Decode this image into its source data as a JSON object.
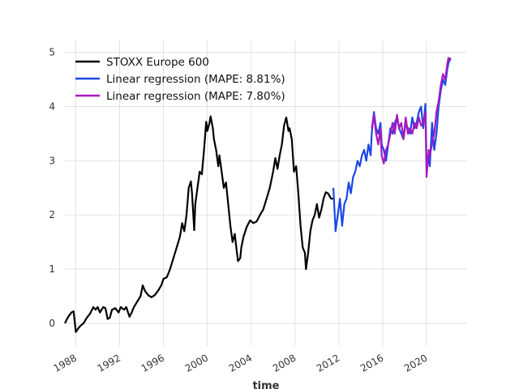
{
  "chart_data": {
    "type": "line",
    "title": "",
    "xlabel": "time",
    "ylabel": "",
    "xlim": [
      1987.0,
      2023.7
    ],
    "ylim": [
      -0.42,
      5.22
    ],
    "grid": true,
    "legend_position": "top-left",
    "x_ticks": [
      1988,
      1992,
      1996,
      2000,
      2004,
      2008,
      2012,
      2016,
      2020
    ],
    "y_ticks": [
      0,
      1,
      2,
      3,
      4,
      5
    ],
    "series": [
      {
        "name": "STOXX Europe 600",
        "color": "#000000",
        "x": [
          1987.0,
          1987.3,
          1987.6,
          1987.8,
          1988.0,
          1988.2,
          1988.4,
          1988.7,
          1989.0,
          1989.3,
          1989.6,
          1989.8,
          1990.0,
          1990.2,
          1990.5,
          1990.7,
          1990.9,
          1991.1,
          1991.3,
          1991.6,
          1991.9,
          1992.1,
          1992.4,
          1992.6,
          1992.9,
          1993.1,
          1993.3,
          1993.6,
          1993.9,
          1994.1,
          1994.3,
          1994.6,
          1994.9,
          1995.2,
          1995.5,
          1995.8,
          1996.0,
          1996.3,
          1996.6,
          1996.9,
          1997.2,
          1997.5,
          1997.7,
          1997.9,
          1998.1,
          1998.3,
          1998.5,
          1998.6,
          1998.8,
          1998.9,
          1999.1,
          1999.3,
          1999.5,
          1999.7,
          1999.9,
          2000.0,
          2000.2,
          2000.3,
          2000.5,
          2000.6,
          2000.8,
          2001.0,
          2001.1,
          2001.3,
          2001.5,
          2001.7,
          2001.9,
          2002.1,
          2002.3,
          2002.5,
          2002.7,
          2002.8,
          2003.0,
          2003.1,
          2003.3,
          2003.6,
          2003.9,
          2004.2,
          2004.5,
          2004.8,
          2005.1,
          2005.4,
          2005.7,
          2006.0,
          2006.2,
          2006.4,
          2006.6,
          2006.8,
          2007.0,
          2007.2,
          2007.4,
          2007.5,
          2007.7,
          2007.9,
          2008.1,
          2008.3,
          2008.5,
          2008.7,
          2008.9,
          2009.0,
          2009.2,
          2009.4,
          2009.6,
          2009.8,
          2010.0,
          2010.2,
          2010.4,
          2010.6,
          2010.8,
          2011.0,
          2011.3,
          2011.5
        ],
        "y": [
          0.0,
          0.12,
          0.2,
          0.22,
          -0.16,
          -0.1,
          -0.05,
          0.0,
          0.1,
          0.18,
          0.3,
          0.25,
          0.3,
          0.2,
          0.3,
          0.28,
          0.08,
          0.1,
          0.25,
          0.28,
          0.2,
          0.3,
          0.25,
          0.3,
          0.12,
          0.2,
          0.3,
          0.4,
          0.5,
          0.7,
          0.6,
          0.52,
          0.48,
          0.52,
          0.6,
          0.7,
          0.82,
          0.85,
          1.0,
          1.2,
          1.4,
          1.6,
          1.85,
          1.7,
          2.0,
          2.5,
          2.62,
          2.4,
          1.72,
          2.2,
          2.5,
          2.8,
          2.75,
          3.2,
          3.72,
          3.55,
          3.7,
          3.82,
          3.6,
          3.4,
          3.2,
          2.9,
          3.1,
          2.8,
          2.5,
          2.6,
          2.2,
          1.8,
          1.5,
          1.65,
          1.3,
          1.15,
          1.2,
          1.4,
          1.6,
          1.78,
          1.9,
          1.85,
          1.88,
          2.0,
          2.1,
          2.3,
          2.5,
          2.8,
          3.05,
          2.85,
          3.1,
          3.3,
          3.65,
          3.8,
          3.55,
          3.6,
          3.4,
          2.8,
          2.9,
          2.4,
          1.8,
          1.4,
          1.3,
          1.0,
          1.3,
          1.7,
          1.9,
          2.0,
          2.2,
          1.95,
          2.1,
          2.3,
          2.42,
          2.4,
          2.3,
          2.3
        ]
      },
      {
        "name": "Linear regression (MAPE: 8.81%)",
        "color": "#1b48e6",
        "x": [
          2011.5,
          2011.7,
          2011.9,
          2012.1,
          2012.3,
          2012.5,
          2012.7,
          2012.9,
          2013.1,
          2013.3,
          2013.5,
          2013.7,
          2013.9,
          2014.1,
          2014.3,
          2014.5,
          2014.7,
          2014.9,
          2015.0,
          2015.2,
          2015.4,
          2015.6,
          2015.8,
          2015.9,
          2016.1,
          2016.3,
          2016.5,
          2016.7,
          2016.9,
          2017.1,
          2017.3,
          2017.5,
          2017.7,
          2017.9,
          2018.1,
          2018.3,
          2018.5,
          2018.7,
          2018.9,
          2019.1,
          2019.3,
          2019.5,
          2019.7,
          2019.9,
          2020.0,
          2020.2,
          2020.3,
          2020.5,
          2020.7,
          2020.9,
          2021.1,
          2021.3,
          2021.5,
          2021.7,
          2021.9,
          2022.0,
          2022.2
        ],
        "y": [
          2.5,
          1.7,
          2.0,
          2.3,
          1.8,
          2.2,
          2.3,
          2.6,
          2.4,
          2.7,
          2.8,
          3.0,
          2.9,
          3.1,
          3.2,
          3.0,
          3.3,
          3.1,
          3.5,
          3.9,
          3.6,
          3.5,
          3.7,
          3.3,
          3.2,
          3.0,
          3.3,
          3.6,
          3.5,
          3.7,
          3.8,
          3.6,
          3.5,
          3.4,
          3.7,
          3.6,
          3.5,
          3.8,
          3.6,
          3.7,
          3.9,
          4.0,
          3.6,
          4.05,
          3.0,
          3.1,
          2.9,
          3.7,
          3.2,
          3.5,
          4.0,
          4.3,
          4.5,
          4.4,
          4.7,
          4.8,
          4.9
        ]
      },
      {
        "name": "Linear regression (MAPE: 7.80%)",
        "color": "#a918c0",
        "x": [
          2015.0,
          2015.2,
          2015.4,
          2015.6,
          2015.8,
          2015.9,
          2016.1,
          2016.3,
          2016.5,
          2016.7,
          2016.9,
          2017.1,
          2017.3,
          2017.5,
          2017.7,
          2017.9,
          2018.1,
          2018.3,
          2018.5,
          2018.7,
          2018.9,
          2019.1,
          2019.3,
          2019.5,
          2019.7,
          2019.9,
          2020.0,
          2020.2,
          2020.3,
          2020.5,
          2020.7,
          2020.9,
          2021.1,
          2021.3,
          2021.5,
          2021.7,
          2021.9,
          2022.0,
          2022.2
        ],
        "y": [
          3.6,
          3.85,
          3.5,
          3.3,
          3.6,
          3.1,
          2.95,
          3.2,
          3.3,
          3.5,
          3.7,
          3.5,
          3.85,
          3.6,
          3.7,
          3.4,
          3.8,
          3.5,
          3.6,
          3.5,
          3.7,
          3.6,
          3.8,
          3.65,
          3.7,
          3.9,
          2.7,
          3.2,
          3.1,
          3.3,
          3.5,
          3.9,
          4.1,
          4.4,
          4.6,
          4.5,
          4.8,
          4.9,
          4.85
        ]
      }
    ]
  }
}
